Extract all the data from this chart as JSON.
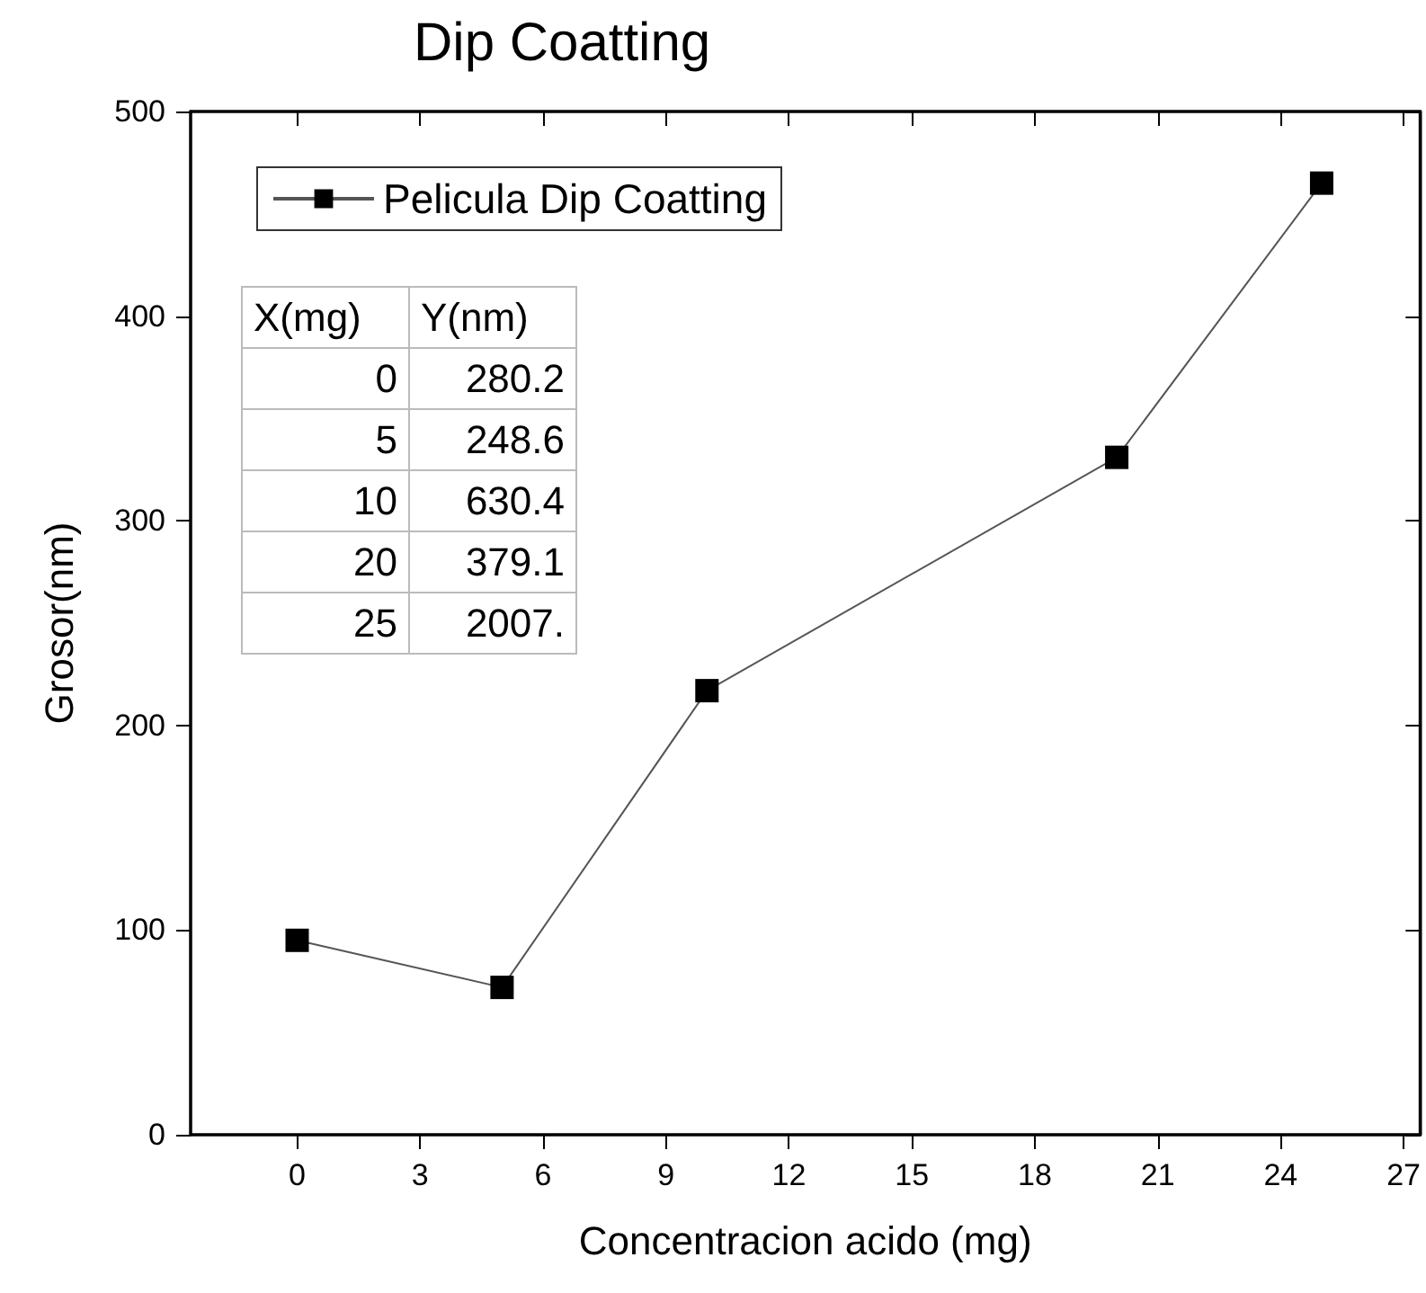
{
  "chart_data": {
    "type": "line",
    "title": "Dip Coatting",
    "xlabel": "Concentracion acido (mg)",
    "ylabel": "Grosor(nm)",
    "x": [
      0,
      5,
      10,
      20,
      25
    ],
    "series": [
      {
        "name": "Pelicula Dip Coatting",
        "color": "#000000",
        "values": [
          95,
          72,
          217,
          331,
          465
        ]
      }
    ],
    "xlim": [
      -2.6,
      27.4
    ],
    "xticks": [
      0,
      3,
      6,
      9,
      12,
      15,
      18,
      21,
      24,
      27
    ],
    "ylim": [
      0,
      500
    ],
    "yticks": [
      0,
      100,
      200,
      300,
      400,
      500
    ],
    "legend": "top left",
    "marker": "square",
    "line_style": "solid",
    "annotations": [
      "X(mg)",
      "Y(nm)",
      "0",
      "280.2",
      "5",
      "248.6",
      "10",
      "630.4",
      "20",
      "379.1",
      "25",
      "2007."
    ]
  }
}
